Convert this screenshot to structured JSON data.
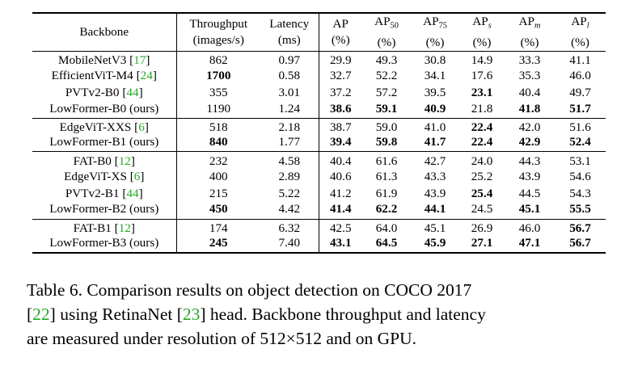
{
  "table": {
    "headers": {
      "backbone": "Backbone",
      "throughput": [
        "Throughput",
        "(images/s)"
      ],
      "latency": [
        "Latency",
        "(ms)"
      ],
      "ap": [
        "AP",
        "(%)"
      ],
      "ap50": [
        "AP",
        "50",
        "(%)"
      ],
      "ap75": [
        "AP",
        "75",
        "(%)"
      ],
      "aps": [
        "AP",
        "s",
        "(%)"
      ],
      "apm": [
        "AP",
        "m",
        "(%)"
      ],
      "apl": [
        "AP",
        "l",
        "(%)"
      ]
    },
    "groups": [
      [
        {
          "name": "MobileNetV3 [",
          "cite": "17",
          "close": "]",
          "throughput": "862",
          "latency": "0.97",
          "ap": "29.9",
          "ap50": "49.3",
          "ap75": "30.8",
          "aps": "14.9",
          "apm": "33.3",
          "apl": "41.1",
          "bold": []
        },
        {
          "name": "EfficientViT-M4 [",
          "cite": "24",
          "close": "]",
          "throughput": "1700",
          "latency": "0.58",
          "ap": "32.7",
          "ap50": "52.2",
          "ap75": "34.1",
          "aps": "17.6",
          "apm": "35.3",
          "apl": "46.0",
          "bold": [
            "throughput"
          ]
        },
        {
          "name": "PVTv2-B0 [",
          "cite": "44",
          "close": "]",
          "throughput": "355",
          "latency": "3.01",
          "ap": "37.2",
          "ap50": "57.2",
          "ap75": "39.5",
          "aps": "23.1",
          "apm": "40.4",
          "apl": "49.7",
          "bold": [
            "aps"
          ]
        },
        {
          "name": "LowFormer-B0 (ours)",
          "cite": "",
          "close": "",
          "throughput": "1190",
          "latency": "1.24",
          "ap": "38.6",
          "ap50": "59.1",
          "ap75": "40.9",
          "aps": "21.8",
          "apm": "41.8",
          "apl": "51.7",
          "bold": [
            "ap",
            "ap50",
            "ap75",
            "apm",
            "apl"
          ]
        }
      ],
      [
        {
          "name": "EdgeViT-XXS [",
          "cite": "6",
          "close": "]",
          "throughput": "518",
          "latency": "2.18",
          "ap": "38.7",
          "ap50": "59.0",
          "ap75": "41.0",
          "aps": "22.4",
          "apm": "42.0",
          "apl": "51.6",
          "bold": [
            "aps"
          ]
        },
        {
          "name": "LowFormer-B1 (ours)",
          "cite": "",
          "close": "",
          "throughput": "840",
          "latency": "1.77",
          "ap": "39.4",
          "ap50": "59.8",
          "ap75": "41.7",
          "aps": "22.4",
          "apm": "42.9",
          "apl": "52.4",
          "bold": [
            "throughput",
            "ap",
            "ap50",
            "ap75",
            "aps",
            "apm",
            "apl"
          ]
        }
      ],
      [
        {
          "name": "FAT-B0 [",
          "cite": "12",
          "close": "]",
          "throughput": "232",
          "latency": "4.58",
          "ap": "40.4",
          "ap50": "61.6",
          "ap75": "42.7",
          "aps": "24.0",
          "apm": "44.3",
          "apl": "53.1",
          "bold": []
        },
        {
          "name": "EdgeViT-XS [",
          "cite": "6",
          "close": "]",
          "throughput": "400",
          "latency": "2.89",
          "ap": "40.6",
          "ap50": "61.3",
          "ap75": "43.3",
          "aps": "25.2",
          "apm": "43.9",
          "apl": "54.6",
          "bold": []
        },
        {
          "name": "PVTv2-B1 [",
          "cite": "44",
          "close": "]",
          "throughput": "215",
          "latency": "5.22",
          "ap": "41.2",
          "ap50": "61.9",
          "ap75": "43.9",
          "aps": "25.4",
          "apm": "44.5",
          "apl": "54.3",
          "bold": [
            "aps"
          ]
        },
        {
          "name": "LowFormer-B2 (ours)",
          "cite": "",
          "close": "",
          "throughput": "450",
          "latency": "4.42",
          "ap": "41.4",
          "ap50": "62.2",
          "ap75": "44.1",
          "aps": "24.5",
          "apm": "45.1",
          "apl": "55.5",
          "bold": [
            "throughput",
            "ap",
            "ap50",
            "ap75",
            "apm",
            "apl"
          ]
        }
      ],
      [
        {
          "name": "FAT-B1 [",
          "cite": "12",
          "close": "]",
          "throughput": "174",
          "latency": "6.32",
          "ap": "42.5",
          "ap50": "64.0",
          "ap75": "45.1",
          "aps": "26.9",
          "apm": "46.0",
          "apl": "56.7",
          "bold": [
            "apl"
          ]
        },
        {
          "name": "LowFormer-B3 (ours)",
          "cite": "",
          "close": "",
          "throughput": "245",
          "latency": "7.40",
          "ap": "43.1",
          "ap50": "64.5",
          "ap75": "45.9",
          "aps": "27.1",
          "apm": "47.1",
          "apl": "56.7",
          "bold": [
            "throughput",
            "ap",
            "ap50",
            "ap75",
            "aps",
            "apm",
            "apl"
          ]
        }
      ]
    ]
  },
  "caption": {
    "l1": "Table 6.  Comparison results on object detection on COCO 2017",
    "l2_a": "[",
    "l2_cite1": "22",
    "l2_b": "] using RetinaNet [",
    "l2_cite2": "23",
    "l2_c": "] head. Backbone throughput and latency",
    "l3": "are measured under resolution of 512×512 and on GPU."
  }
}
